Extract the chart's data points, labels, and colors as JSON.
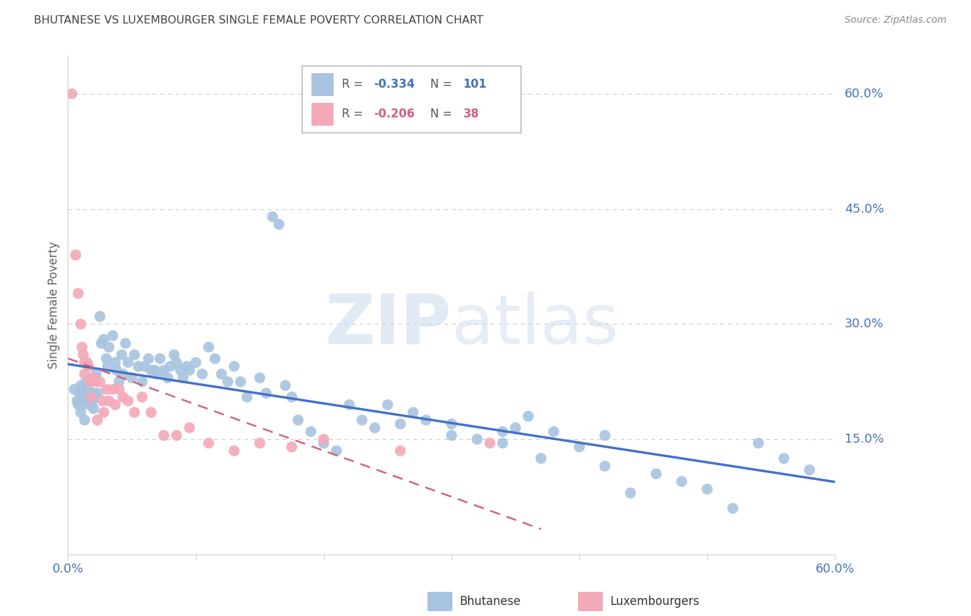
{
  "title": "BHUTANESE VS LUXEMBOURGER SINGLE FEMALE POVERTY CORRELATION CHART",
  "source": "Source: ZipAtlas.com",
  "ylabel": "Single Female Poverty",
  "right_yticks": [
    "60.0%",
    "45.0%",
    "30.0%",
    "15.0%"
  ],
  "right_ytick_vals": [
    0.6,
    0.45,
    0.3,
    0.15
  ],
  "xlim": [
    0.0,
    0.6
  ],
  "ylim": [
    0.0,
    0.65
  ],
  "bhutanese_color": "#a8c4e0",
  "luxembourger_color": "#f4a8b8",
  "bhutanese_line_color": "#4472c4",
  "luxembourger_line_color": "#d4607a",
  "legend_R_blue": "-0.334",
  "legend_N_blue": "101",
  "legend_R_pink": "-0.206",
  "legend_N_pink": "38",
  "background_color": "#ffffff",
  "grid_color": "#c8c8c8",
  "tick_color": "#4472c4",
  "title_color": "#404040",
  "label_color": "#606060",
  "bhutanese_x": [
    0.005,
    0.007,
    0.008,
    0.009,
    0.01,
    0.01,
    0.011,
    0.011,
    0.012,
    0.013,
    0.014,
    0.015,
    0.015,
    0.016,
    0.017,
    0.018,
    0.019,
    0.02,
    0.02,
    0.021,
    0.022,
    0.023,
    0.025,
    0.026,
    0.028,
    0.03,
    0.031,
    0.032,
    0.035,
    0.037,
    0.038,
    0.04,
    0.042,
    0.043,
    0.045,
    0.047,
    0.05,
    0.052,
    0.055,
    0.058,
    0.06,
    0.063,
    0.065,
    0.068,
    0.07,
    0.072,
    0.075,
    0.078,
    0.08,
    0.083,
    0.085,
    0.088,
    0.09,
    0.093,
    0.095,
    0.1,
    0.105,
    0.11,
    0.115,
    0.12,
    0.125,
    0.13,
    0.135,
    0.14,
    0.15,
    0.155,
    0.16,
    0.165,
    0.17,
    0.175,
    0.18,
    0.19,
    0.2,
    0.21,
    0.22,
    0.23,
    0.24,
    0.25,
    0.26,
    0.27,
    0.28,
    0.3,
    0.32,
    0.34,
    0.36,
    0.38,
    0.4,
    0.42,
    0.44,
    0.46,
    0.48,
    0.5,
    0.52,
    0.54,
    0.56,
    0.3,
    0.35,
    0.42,
    0.37,
    0.34,
    0.58
  ],
  "bhutanese_y": [
    0.215,
    0.2,
    0.195,
    0.21,
    0.22,
    0.185,
    0.215,
    0.205,
    0.195,
    0.175,
    0.225,
    0.205,
    0.2,
    0.215,
    0.195,
    0.205,
    0.2,
    0.21,
    0.19,
    0.205,
    0.235,
    0.21,
    0.31,
    0.275,
    0.28,
    0.255,
    0.245,
    0.27,
    0.285,
    0.25,
    0.24,
    0.225,
    0.26,
    0.235,
    0.275,
    0.25,
    0.23,
    0.26,
    0.245,
    0.225,
    0.245,
    0.255,
    0.24,
    0.24,
    0.235,
    0.255,
    0.24,
    0.23,
    0.245,
    0.26,
    0.25,
    0.24,
    0.23,
    0.245,
    0.24,
    0.25,
    0.235,
    0.27,
    0.255,
    0.235,
    0.225,
    0.245,
    0.225,
    0.205,
    0.23,
    0.21,
    0.44,
    0.43,
    0.22,
    0.205,
    0.175,
    0.16,
    0.145,
    0.135,
    0.195,
    0.175,
    0.165,
    0.195,
    0.17,
    0.185,
    0.175,
    0.17,
    0.15,
    0.16,
    0.18,
    0.16,
    0.14,
    0.155,
    0.08,
    0.105,
    0.095,
    0.085,
    0.06,
    0.145,
    0.125,
    0.155,
    0.165,
    0.115,
    0.125,
    0.145,
    0.11
  ],
  "luxembourger_x": [
    0.003,
    0.006,
    0.008,
    0.01,
    0.011,
    0.012,
    0.013,
    0.013,
    0.015,
    0.016,
    0.017,
    0.018,
    0.02,
    0.022,
    0.023,
    0.025,
    0.027,
    0.028,
    0.03,
    0.032,
    0.035,
    0.037,
    0.04,
    0.043,
    0.047,
    0.052,
    0.058,
    0.065,
    0.075,
    0.085,
    0.095,
    0.11,
    0.13,
    0.15,
    0.175,
    0.2,
    0.26,
    0.33
  ],
  "luxembourger_y": [
    0.6,
    0.39,
    0.34,
    0.3,
    0.27,
    0.26,
    0.25,
    0.235,
    0.25,
    0.245,
    0.225,
    0.205,
    0.23,
    0.225,
    0.175,
    0.225,
    0.2,
    0.185,
    0.215,
    0.2,
    0.215,
    0.195,
    0.215,
    0.205,
    0.2,
    0.185,
    0.205,
    0.185,
    0.155,
    0.155,
    0.165,
    0.145,
    0.135,
    0.145,
    0.14,
    0.15,
    0.135,
    0.145
  ]
}
